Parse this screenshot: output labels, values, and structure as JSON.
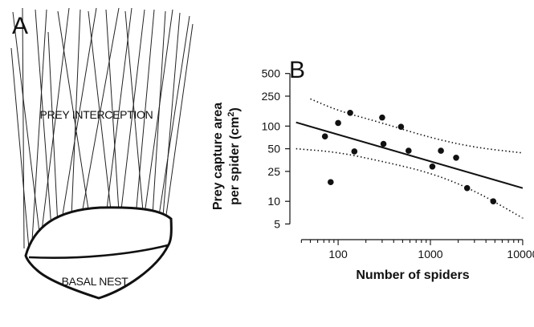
{
  "panel_a": {
    "letter": "A",
    "label_upper": "PREY INTERCEPTION",
    "label_lower": "BASAL NEST"
  },
  "panel_b": {
    "letter": "B"
  },
  "chart_data": {
    "type": "scatter",
    "title": "",
    "xlabel": "Number of spiders",
    "ylabel_line1": "Prey capture area",
    "ylabel_line2": "per spider (cm",
    "ylabel_sup": "2",
    "ylabel_end": ")",
    "x_scale": "log",
    "y_scale": "log",
    "xlim": [
      30,
      12000
    ],
    "ylim": [
      3.5,
      700
    ],
    "x_ticks": [
      100,
      1000,
      10000
    ],
    "x_tick_labels": [
      "100",
      "1000",
      "10000"
    ],
    "y_ticks": [
      5,
      10,
      25,
      50,
      100,
      250,
      500
    ],
    "y_tick_labels": [
      "5",
      "10",
      "25",
      "50",
      "100",
      "250",
      "500"
    ],
    "grid": false,
    "legend": false,
    "points": [
      {
        "x": 72,
        "y": 73
      },
      {
        "x": 83,
        "y": 18
      },
      {
        "x": 100,
        "y": 110
      },
      {
        "x": 135,
        "y": 150
      },
      {
        "x": 150,
        "y": 46
      },
      {
        "x": 300,
        "y": 130
      },
      {
        "x": 310,
        "y": 58
      },
      {
        "x": 480,
        "y": 98
      },
      {
        "x": 580,
        "y": 47
      },
      {
        "x": 1050,
        "y": 29
      },
      {
        "x": 1300,
        "y": 47
      },
      {
        "x": 1900,
        "y": 38
      },
      {
        "x": 2500,
        "y": 15
      },
      {
        "x": 4800,
        "y": 10
      }
    ],
    "fit_line": {
      "x": [
        35,
        10000
      ],
      "y": [
        112,
        15
      ]
    },
    "confidence_upper": {
      "x": [
        50,
        100,
        300,
        1000,
        3000,
        10000
      ],
      "y": [
        230,
        160,
        110,
        70,
        52,
        44
      ]
    },
    "confidence_lower": {
      "x": [
        35,
        100,
        300,
        1000,
        3000,
        10000
      ],
      "y": [
        50,
        45,
        34,
        24,
        14,
        6
      ]
    }
  }
}
